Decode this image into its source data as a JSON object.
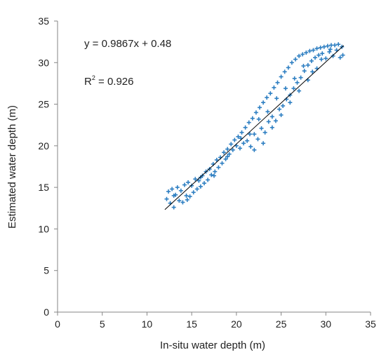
{
  "chart_data": {
    "type": "scatter",
    "title": "",
    "xlabel": "In-situ water depth (m)",
    "ylabel": "Estimated water depth (m)",
    "xlim": [
      0,
      35
    ],
    "ylim": [
      0,
      35
    ],
    "xticks": [
      0,
      5,
      10,
      15,
      20,
      25,
      30,
      35
    ],
    "yticks": [
      0,
      5,
      10,
      15,
      20,
      25,
      30,
      35
    ],
    "grid": false,
    "marker": "plus",
    "marker_color": "#2e7fc2",
    "trendline_color": "#000000",
    "annotations": {
      "equation": "y = 0.9867x + 0.48",
      "r2_prefix": "R",
      "r2_sup": "2",
      "r2_value": " = 0.926"
    },
    "trendline": {
      "slope": 0.9867,
      "intercept": 0.48,
      "x_range": [
        12,
        32
      ]
    },
    "series": [
      {
        "points": [
          [
            12.2,
            13.6
          ],
          [
            12.4,
            14.5
          ],
          [
            12.6,
            13.1
          ],
          [
            12.8,
            14.8
          ],
          [
            13.0,
            12.6
          ],
          [
            13.2,
            14.1
          ],
          [
            13.4,
            15.0
          ],
          [
            13.6,
            13.4
          ],
          [
            13.8,
            14.6
          ],
          [
            14.0,
            13.2
          ],
          [
            14.2,
            15.3
          ],
          [
            14.4,
            14.0
          ],
          [
            14.6,
            15.6
          ],
          [
            14.8,
            13.9
          ],
          [
            15.0,
            15.2
          ],
          [
            15.2,
            14.4
          ],
          [
            15.4,
            16.0
          ],
          [
            15.6,
            14.8
          ],
          [
            15.8,
            15.8
          ],
          [
            16.0,
            15.1
          ],
          [
            16.2,
            16.4
          ],
          [
            16.4,
            15.5
          ],
          [
            16.6,
            16.9
          ],
          [
            16.8,
            15.9
          ],
          [
            17.0,
            17.2
          ],
          [
            17.2,
            16.5
          ],
          [
            17.4,
            17.8
          ],
          [
            17.6,
            16.9
          ],
          [
            17.8,
            18.3
          ],
          [
            18.0,
            17.4
          ],
          [
            18.2,
            18.6
          ],
          [
            18.4,
            17.9
          ],
          [
            18.6,
            19.2
          ],
          [
            18.8,
            18.4
          ],
          [
            19.0,
            19.6
          ],
          [
            19.2,
            19.0
          ],
          [
            19.4,
            20.2
          ],
          [
            19.6,
            19.5
          ],
          [
            19.8,
            20.7
          ],
          [
            20.0,
            20.0
          ],
          [
            20.2,
            21.1
          ],
          [
            20.4,
            19.7
          ],
          [
            20.6,
            21.6
          ],
          [
            20.8,
            20.3
          ],
          [
            21.0,
            22.2
          ],
          [
            21.2,
            20.6
          ],
          [
            21.4,
            22.8
          ],
          [
            21.6,
            19.9
          ],
          [
            21.8,
            23.3
          ],
          [
            22.0,
            21.4
          ],
          [
            22.2,
            24.0
          ],
          [
            22.4,
            20.8
          ],
          [
            22.6,
            24.6
          ],
          [
            22.8,
            22.1
          ],
          [
            23.0,
            25.2
          ],
          [
            23.2,
            21.6
          ],
          [
            23.4,
            25.8
          ],
          [
            23.6,
            22.9
          ],
          [
            23.8,
            26.3
          ],
          [
            24.0,
            23.5
          ],
          [
            24.2,
            27.0
          ],
          [
            24.4,
            23.0
          ],
          [
            24.6,
            27.6
          ],
          [
            24.8,
            24.4
          ],
          [
            25.0,
            28.3
          ],
          [
            25.2,
            24.8
          ],
          [
            25.4,
            28.9
          ],
          [
            25.6,
            25.6
          ],
          [
            25.8,
            29.4
          ],
          [
            26.0,
            26.1
          ],
          [
            26.2,
            30.0
          ],
          [
            26.4,
            26.9
          ],
          [
            26.6,
            30.4
          ],
          [
            26.8,
            27.6
          ],
          [
            27.0,
            30.8
          ],
          [
            27.2,
            28.2
          ],
          [
            27.4,
            31.0
          ],
          [
            27.6,
            29.0
          ],
          [
            27.8,
            31.2
          ],
          [
            28.0,
            29.7
          ],
          [
            28.2,
            31.4
          ],
          [
            28.4,
            30.2
          ],
          [
            28.6,
            31.5
          ],
          [
            28.8,
            30.6
          ],
          [
            29.0,
            31.7
          ],
          [
            29.2,
            30.9
          ],
          [
            29.4,
            31.8
          ],
          [
            29.6,
            31.1
          ],
          [
            29.8,
            31.9
          ],
          [
            30.0,
            30.5
          ],
          [
            30.2,
            32.0
          ],
          [
            30.4,
            31.3
          ],
          [
            30.6,
            32.1
          ],
          [
            30.8,
            30.8
          ],
          [
            31.0,
            32.1
          ],
          [
            31.2,
            31.5
          ],
          [
            31.4,
            32.2
          ],
          [
            31.6,
            30.6
          ],
          [
            31.8,
            31.9
          ],
          [
            31.9,
            30.9
          ],
          [
            13.0,
            14.0
          ],
          [
            14.5,
            13.5
          ],
          [
            16.0,
            16.2
          ],
          [
            17.5,
            16.4
          ],
          [
            19.0,
            18.7
          ],
          [
            20.5,
            20.9
          ],
          [
            21.5,
            21.4
          ],
          [
            22.5,
            23.2
          ],
          [
            23.5,
            24.1
          ],
          [
            24.5,
            25.7
          ],
          [
            25.5,
            26.9
          ],
          [
            26.5,
            28.1
          ],
          [
            27.5,
            29.6
          ],
          [
            28.5,
            28.9
          ],
          [
            29.5,
            30.4
          ],
          [
            30.5,
            31.6
          ],
          [
            22.0,
            19.5
          ],
          [
            23.0,
            20.3
          ],
          [
            24.0,
            22.2
          ],
          [
            25.0,
            23.7
          ],
          [
            26.0,
            25.2
          ],
          [
            27.0,
            26.6
          ],
          [
            28.0,
            27.9
          ],
          [
            29.0,
            29.3
          ]
        ]
      }
    ]
  }
}
